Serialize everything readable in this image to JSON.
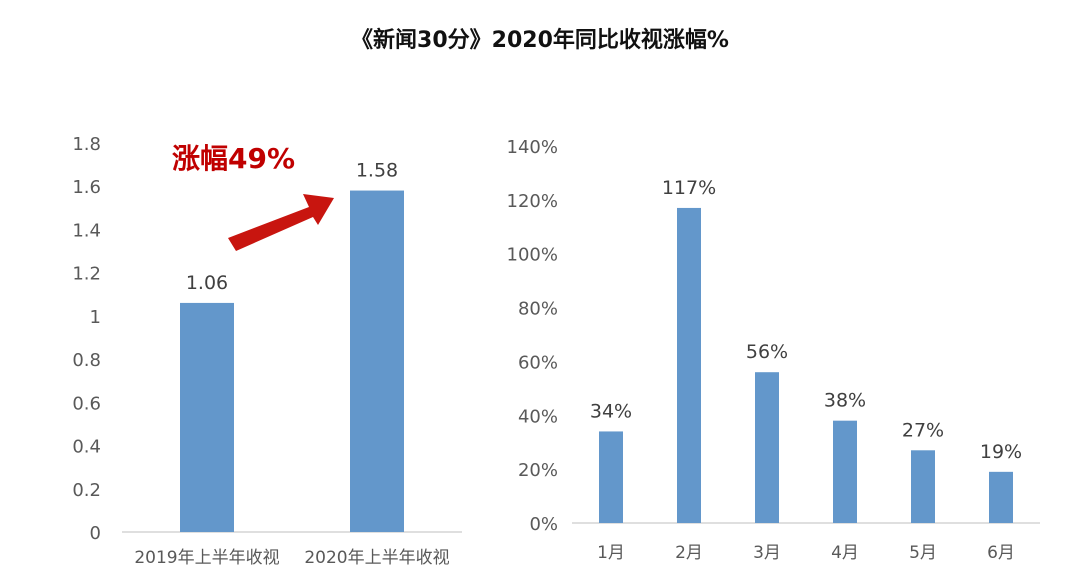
{
  "title": "《新闻30分》2020年同比收视涨幅%",
  "annotation": "涨幅49%",
  "colors": {
    "bar": "#6397CB",
    "arrow": "#C8150F",
    "annotation": "#C00000"
  },
  "chart_data": [
    {
      "type": "bar",
      "categories": [
        "2019年上半年收视",
        "2020年上半年收视"
      ],
      "values": [
        1.06,
        1.58
      ],
      "data_labels": [
        "1.06",
        "1.58"
      ],
      "ylim": [
        0,
        1.8
      ],
      "yticks": [
        "0",
        "0.2",
        "0.4",
        "0.6",
        "0.8",
        "1",
        "1.2",
        "1.4",
        "1.6",
        "1.8"
      ],
      "grid": false
    },
    {
      "type": "bar",
      "categories": [
        "1月",
        "2月",
        "3月",
        "4月",
        "5月",
        "6月"
      ],
      "values": [
        34,
        117,
        56,
        38,
        27,
        19
      ],
      "data_labels": [
        "34%",
        "117%",
        "56%",
        "38%",
        "27%",
        "19%"
      ],
      "ylim": [
        0,
        140
      ],
      "yticks": [
        "0%",
        "20%",
        "40%",
        "60%",
        "80%",
        "100%",
        "120%",
        "140%"
      ],
      "grid": false
    }
  ]
}
